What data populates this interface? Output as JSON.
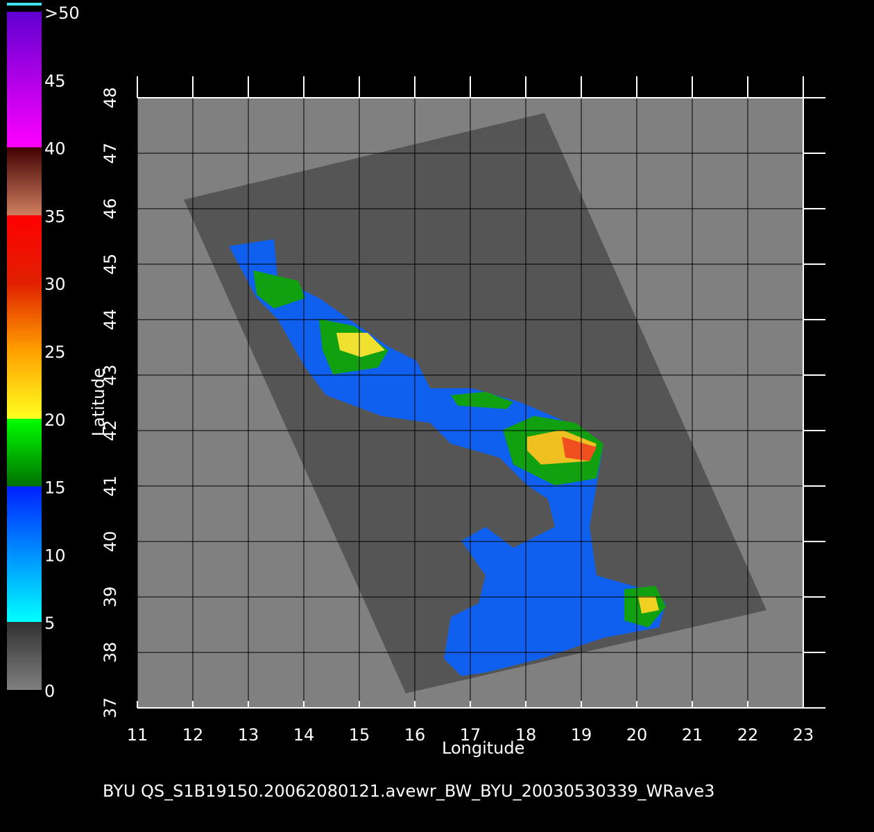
{
  "chart_data": {
    "type": "map",
    "xlabel": "Longitude",
    "ylabel": "Latitude",
    "xlim": [
      11,
      23
    ],
    "ylim": [
      37,
      48
    ],
    "xticks": [
      11,
      12,
      13,
      14,
      15,
      16,
      17,
      18,
      19,
      20,
      21,
      22,
      23
    ],
    "yticks": [
      37,
      38,
      39,
      40,
      41,
      42,
      43,
      44,
      45,
      46,
      47,
      48
    ],
    "grid": true,
    "colorbar": {
      "range": [
        0,
        50
      ],
      "ticks": [
        0,
        5,
        10,
        15,
        20,
        25,
        30,
        35,
        40,
        45,
        {
          "value": 50,
          "label": ">50"
        }
      ]
    },
    "caption": "BYU  QS_S1B19150.20062080121.avewr_BW_BYU_20030530339_WRave3"
  }
}
